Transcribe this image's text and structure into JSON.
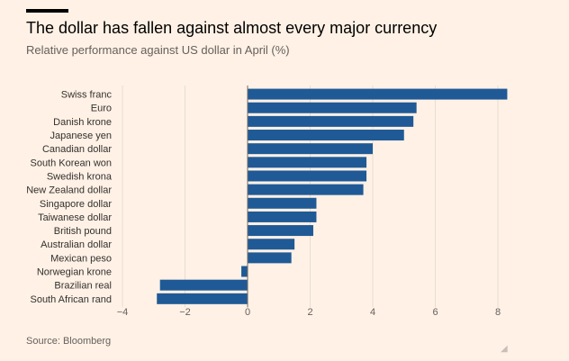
{
  "chart_data": {
    "type": "bar",
    "orientation": "horizontal",
    "title": "The dollar has fallen against almost every major currency",
    "subtitle": "Relative performance against US dollar in April (%)",
    "xlabel": "",
    "ylabel": "",
    "categories": [
      "Swiss franc",
      "Euro",
      "Danish krone",
      "Japanese yen",
      "Canadian dollar",
      "South Korean won",
      "Swedish krona",
      "New Zealand dollar",
      "Singapore dollar",
      "Taiwanese dollar",
      "British pound",
      "Australian dollar",
      "Mexican peso",
      "Norwegian krone",
      "Brazilian real",
      "South African rand"
    ],
    "values": [
      8.3,
      5.4,
      5.3,
      5.0,
      4.0,
      3.8,
      3.8,
      3.7,
      2.2,
      2.2,
      2.1,
      1.5,
      1.4,
      -0.2,
      -2.8,
      -2.9
    ],
    "xlim": [
      -4,
      8
    ],
    "xticks": [
      -4,
      -2,
      0,
      2,
      4,
      6,
      8
    ],
    "grid": true,
    "colors": {
      "bar": "#1f5a96",
      "background": "#fff1e5",
      "grid": "#e7ddd3",
      "zero_line": "#6f6a66",
      "tick_text": "#66605c"
    }
  },
  "source": "Source: Bloomberg",
  "corner_mark": "◢"
}
